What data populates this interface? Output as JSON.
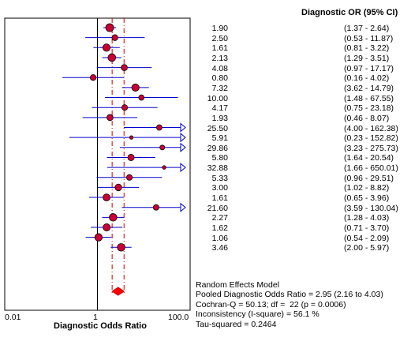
{
  "column_title": "Diagnostic OR (95% CI)",
  "axis": {
    "xlabel": "Diagnostic Odds Ratio",
    "ticks": [
      "0.01",
      "1",
      "100.0"
    ]
  },
  "summary": {
    "model": "Random Effects Model",
    "pooled": "Pooled Diagnostic Odds Ratio = 2.95 (2.16 to 4.03)",
    "cochran": "Cochran-Q = 50.13; df =  22 (p = 0.0006)",
    "inconsistency": "Inconsistency (I-square) = 56.1 %",
    "tau": "Tau-squared = 0.2464"
  },
  "colors": {
    "marker": "#cc0033",
    "ci_line": "#0000cc",
    "pooled_line": "#cc0000"
  },
  "chart_data": {
    "type": "forest",
    "xlabel": "Diagnostic Odds Ratio",
    "x_scale": "log",
    "xlim": [
      0.01,
      100
    ],
    "reference_line": 1,
    "pooled": {
      "or": 2.95,
      "lo": 2.16,
      "hi": 4.03
    },
    "studies": [
      {
        "or": 1.9,
        "lo": 1.37,
        "hi": 2.64,
        "or_label": "1.90",
        "ci_label": "(1.37 - 2.64)"
      },
      {
        "or": 2.5,
        "lo": 0.53,
        "hi": 11.87,
        "or_label": "2.50",
        "ci_label": "(0.53 - 11.87)"
      },
      {
        "or": 1.61,
        "lo": 0.81,
        "hi": 3.22,
        "or_label": "1.61",
        "ci_label": "(0.81 - 3.22)"
      },
      {
        "or": 2.13,
        "lo": 1.29,
        "hi": 3.51,
        "or_label": "2.13",
        "ci_label": "(1.29 - 3.51)"
      },
      {
        "or": 4.08,
        "lo": 0.97,
        "hi": 17.17,
        "or_label": "4.08",
        "ci_label": "(0.97 - 17.17)"
      },
      {
        "or": 0.8,
        "lo": 0.16,
        "hi": 4.02,
        "or_label": "0.80",
        "ci_label": "(0.16 - 4.02)"
      },
      {
        "or": 7.32,
        "lo": 3.62,
        "hi": 14.79,
        "or_label": "7.32",
        "ci_label": "(3.62 - 14.79)"
      },
      {
        "or": 10.0,
        "lo": 1.48,
        "hi": 67.55,
        "or_label": "10.00",
        "ci_label": "(1.48 - 67.55)"
      },
      {
        "or": 4.17,
        "lo": 0.75,
        "hi": 23.18,
        "or_label": "4.17",
        "ci_label": "(0.75 - 23.18)"
      },
      {
        "or": 1.93,
        "lo": 0.46,
        "hi": 8.07,
        "or_label": "1.93",
        "ci_label": "(0.46 - 8.07)"
      },
      {
        "or": 25.5,
        "lo": 4.0,
        "hi": 162.38,
        "or_label": "25.50",
        "ci_label": "(4.00 - 162.38)"
      },
      {
        "or": 5.91,
        "lo": 0.23,
        "hi": 152.82,
        "or_label": "5.91",
        "ci_label": "(0.23 - 152.82)"
      },
      {
        "or": 29.86,
        "lo": 3.23,
        "hi": 275.73,
        "or_label": "29.86",
        "ci_label": "(3.23 - 275.73)"
      },
      {
        "or": 5.8,
        "lo": 1.64,
        "hi": 20.54,
        "or_label": "5.80",
        "ci_label": "(1.64 - 20.54)"
      },
      {
        "or": 32.88,
        "lo": 1.66,
        "hi": 650.01,
        "or_label": "32.88",
        "ci_label": "(1.66 - 650.01)"
      },
      {
        "or": 5.33,
        "lo": 0.96,
        "hi": 29.51,
        "or_label": "5.33",
        "ci_label": "(0.96 - 29.51)"
      },
      {
        "or": 3.0,
        "lo": 1.02,
        "hi": 8.82,
        "or_label": "3.00",
        "ci_label": "(1.02 - 8.82)"
      },
      {
        "or": 1.61,
        "lo": 0.65,
        "hi": 3.96,
        "or_label": "1.61",
        "ci_label": "(0.65 - 3.96)"
      },
      {
        "or": 21.6,
        "lo": 3.59,
        "hi": 130.04,
        "or_label": "21.60",
        "ci_label": "(3.59 - 130.04)"
      },
      {
        "or": 2.27,
        "lo": 1.28,
        "hi": 4.03,
        "or_label": "2.27",
        "ci_label": "(1.28 - 4.03)"
      },
      {
        "or": 1.62,
        "lo": 0.71,
        "hi": 3.7,
        "or_label": "1.62",
        "ci_label": "(0.71 - 3.70)"
      },
      {
        "or": 1.06,
        "lo": 0.54,
        "hi": 2.09,
        "or_label": "1.06",
        "ci_label": "(0.54 - 2.09)"
      },
      {
        "or": 3.46,
        "lo": 2.0,
        "hi": 5.97,
        "or_label": "3.46",
        "ci_label": "(2.00 - 5.97)"
      }
    ]
  }
}
